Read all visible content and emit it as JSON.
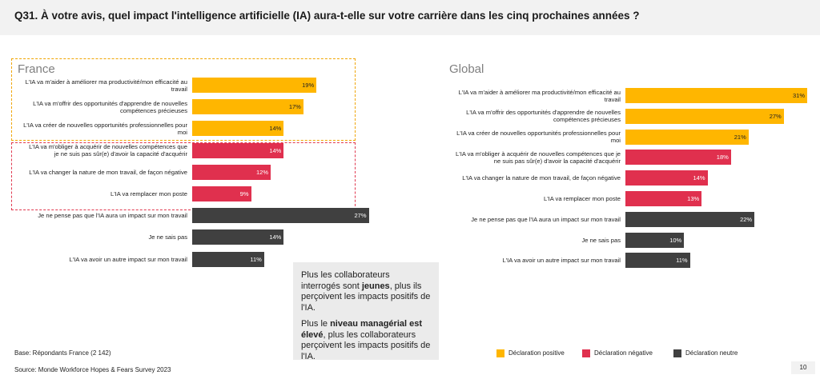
{
  "title": "Q31. À votre avis, quel impact l'intelligence artificielle (IA) aura-t-elle sur votre carrière dans les cinq prochaines années ?",
  "colors": {
    "positive": "#ffb600",
    "negative": "#e0304e",
    "neutral": "#404040"
  },
  "chart_data": [
    {
      "type": "bar",
      "orientation": "horizontal",
      "title": "France",
      "categories": [
        "L'IA va m'aider à améliorer ma productivité/mon efficacité au travail",
        "L'IA va m'offrir des opportunités d'apprendre de nouvelles compétences précieuses",
        "L'IA va créer de nouvelles opportunités professionnelles pour moi",
        "L'IA va m'obliger à acquérir de nouvelles compétences que je ne suis pas sûr(e) d'avoir la capacité d'acquérir",
        "L'IA va changer la nature de mon travail, de façon négative",
        "L'IA va remplacer mon poste",
        "Je ne pense pas que l'IA aura un impact sur mon travail",
        "Je ne sais pas",
        "L'IA va avoir un autre impact sur mon travail"
      ],
      "values": [
        19,
        17,
        14,
        14,
        12,
        9,
        27,
        14,
        11
      ],
      "value_labels": [
        "19%",
        "17%",
        "14%",
        "14%",
        "12%",
        "9%",
        "27%",
        "14%",
        "11%"
      ],
      "groups": [
        "positive",
        "positive",
        "positive",
        "negative",
        "negative",
        "negative",
        "neutral",
        "neutral",
        "neutral"
      ],
      "xlim": [
        0,
        30
      ]
    },
    {
      "type": "bar",
      "orientation": "horizontal",
      "title": "Global",
      "categories": [
        "L'IA va m'aider à améliorer ma productivité/mon efficacité au travail",
        "L'IA va m'offrir des opportunités d'apprendre de nouvelles compétences précieuses",
        "L'IA va créer de nouvelles opportunités professionnelles pour moi",
        "L'IA va m'obliger à acquérir de nouvelles compétences que je ne suis pas sûr(e) d'avoir la capacité d'acquérir",
        "L'IA va changer la nature de mon travail, de façon négative",
        "L'IA va remplacer mon poste",
        "Je ne pense pas que l'IA aura un impact sur mon travail",
        "Je ne sais pas",
        "L'IA va avoir un autre impact sur mon travail"
      ],
      "values": [
        31,
        27,
        21,
        18,
        14,
        13,
        22,
        10,
        11
      ],
      "value_labels": [
        "31%",
        "27%",
        "21%",
        "18%",
        "14%",
        "13%",
        "22%",
        "10%",
        "11%"
      ],
      "groups": [
        "positive",
        "positive",
        "positive",
        "negative",
        "negative",
        "negative",
        "neutral",
        "neutral",
        "neutral"
      ],
      "xlim": [
        0,
        31
      ]
    }
  ],
  "callout": {
    "p1_pre": "Plus les collaborateurs interrogés sont ",
    "p1_bold": "jeunes",
    "p1_post": ", plus ils perçoivent les impacts positifs de l'IA.",
    "p2_pre": "Plus le ",
    "p2_bold": "niveau managérial est élevé",
    "p2_post": ", plus les collaborateurs perçoivent les impacts positifs de l'IA."
  },
  "legend": [
    {
      "label": "Déclaration positive",
      "group": "positive"
    },
    {
      "label": "Déclaration négative",
      "group": "negative"
    },
    {
      "label": "Déclaration neutre",
      "group": "neutral"
    }
  ],
  "footer": {
    "base": "Base: Répondants France (2 142)",
    "source": "Source: Monde Workforce Hopes & Fears Survey 2023",
    "page": "10"
  }
}
